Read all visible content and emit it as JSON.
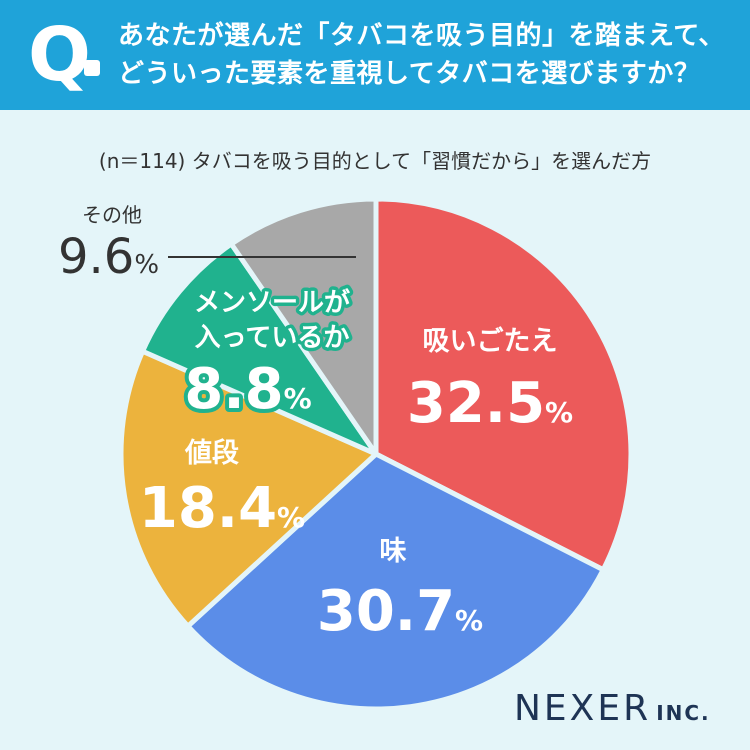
{
  "header": {
    "q_label": "Q",
    "lines": [
      "あなたが選んだ「タバコを吸う目的」を踏まえて、",
      "どういった要素を重視してタバコを選びますか？"
    ]
  },
  "subtitle": "(n＝114) タバコを吸う目的として「習慣だから」を選んだ方",
  "chart_data": {
    "type": "pie",
    "title": "",
    "unit": "%",
    "slices": [
      {
        "label": "吸いごたえ",
        "value": 32.5,
        "value_text": "32.5",
        "color": "#ec5a5a"
      },
      {
        "label": "味",
        "value": 30.7,
        "value_text": "30.7",
        "color": "#5b8de8"
      },
      {
        "label": "値段",
        "value": 18.4,
        "value_text": "18.4",
        "color": "#ecb33d"
      },
      {
        "label": "メンソールが入っているか",
        "value": 8.8,
        "value_text": "8.8",
        "color": "#20b28e"
      },
      {
        "label": "その他",
        "value": 9.6,
        "value_text": "9.6",
        "color": "#a8a8a8"
      }
    ]
  },
  "logo": {
    "main": "NEXER",
    "suffix": "INC."
  }
}
